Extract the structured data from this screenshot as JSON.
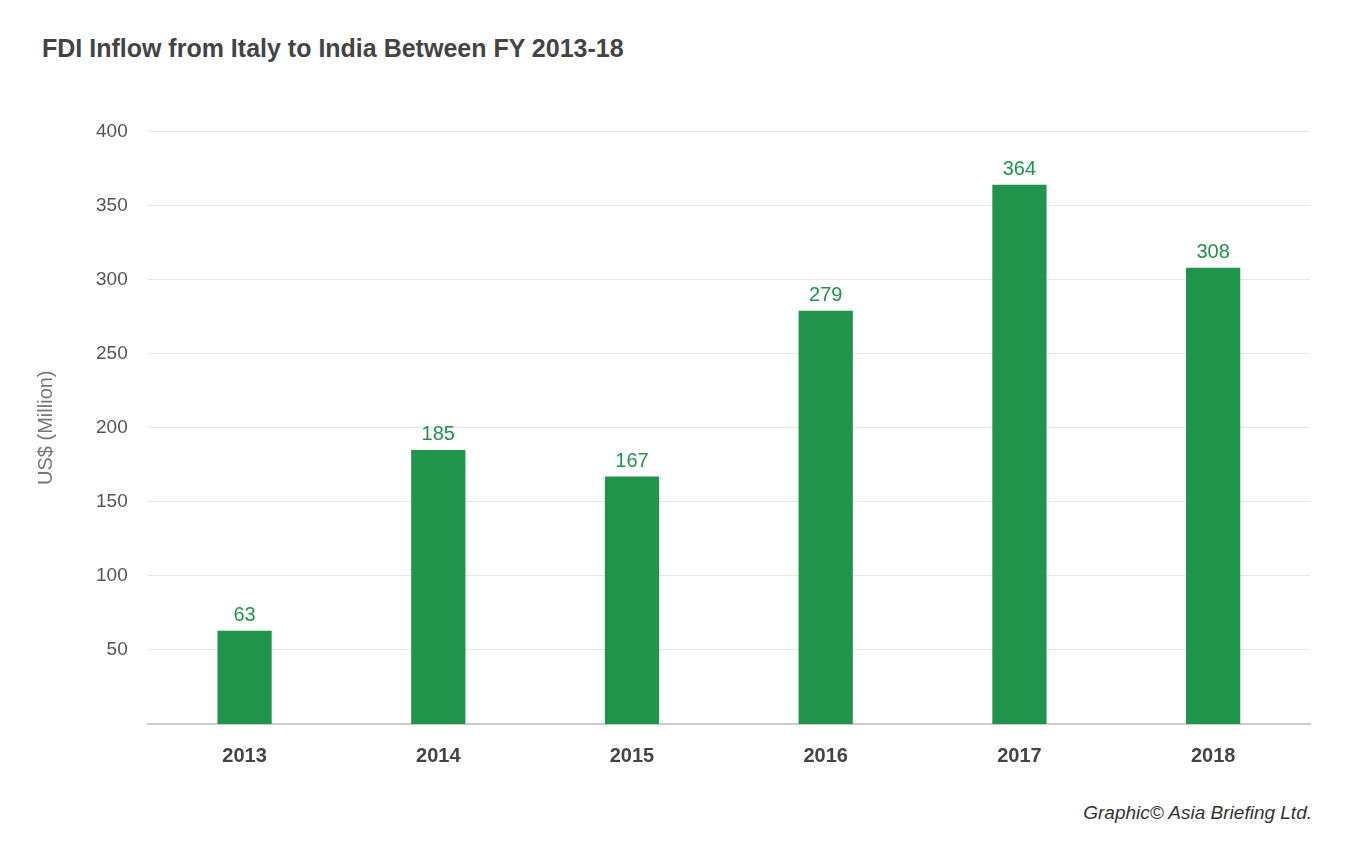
{
  "chart_data": {
    "type": "bar",
    "title": "FDI Inflow from Italy to India Between FY 2013-18",
    "y_label": "US$ (Million)",
    "annotation": "Graphic© Asia Briefing Ltd.",
    "categories": [
      "2013",
      "2014",
      "2015",
      "2016",
      "2017",
      "2018"
    ],
    "values": [
      63,
      185,
      167,
      279,
      364,
      308
    ],
    "color": "#1f944a",
    "ylim": [
      0,
      400
    ],
    "yticks": [
      50,
      100,
      150,
      200,
      250,
      300,
      350,
      400
    ],
    "grid": true,
    "data_labels": true
  }
}
